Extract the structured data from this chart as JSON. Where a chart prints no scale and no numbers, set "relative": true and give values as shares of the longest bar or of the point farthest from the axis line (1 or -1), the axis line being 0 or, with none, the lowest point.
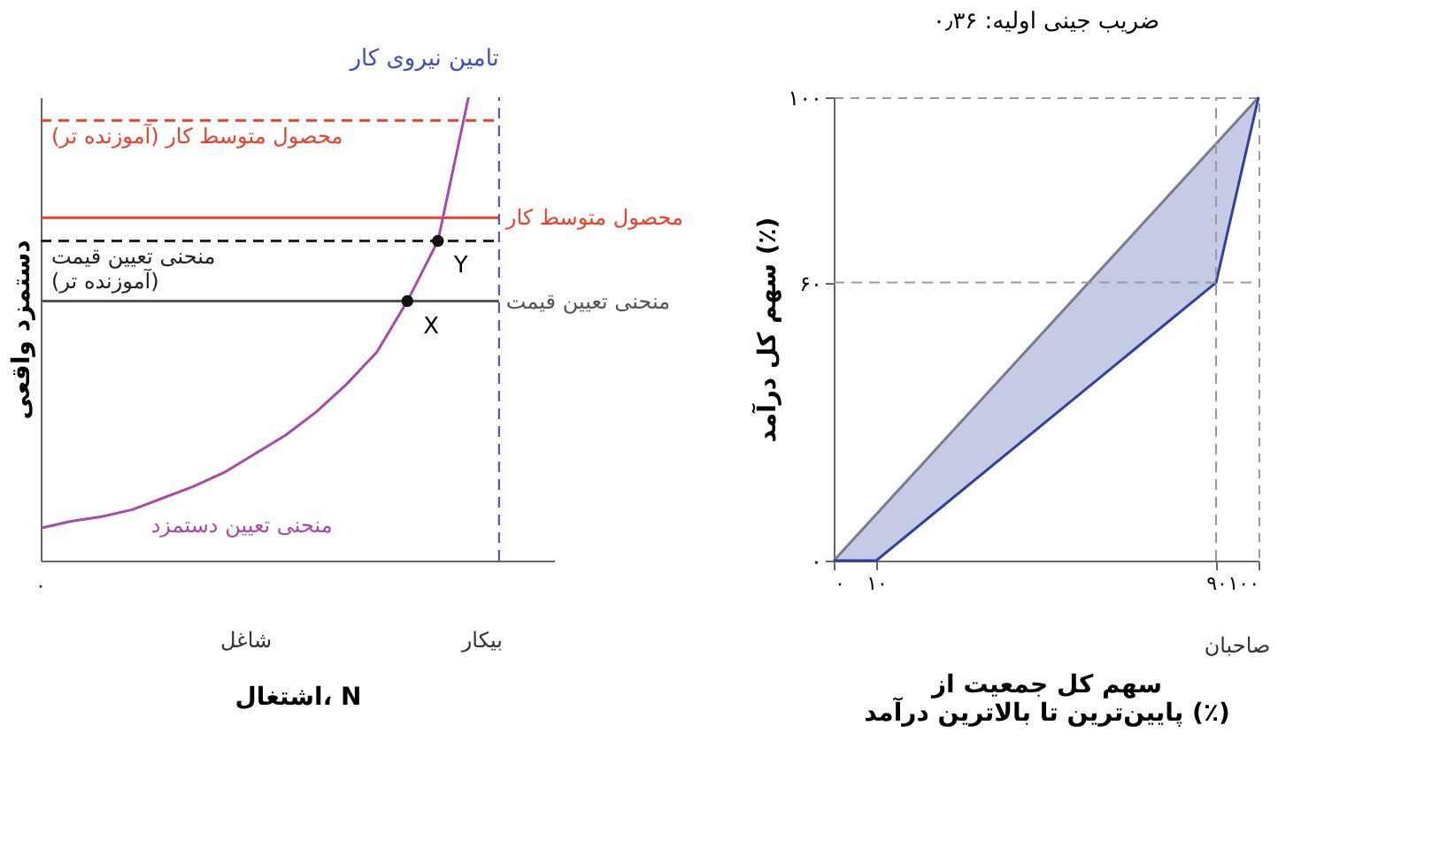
{
  "chart_data": [
    {
      "type": "line",
      "relative": true,
      "xlabel": "اشتغال، N",
      "ylabel": "دستمزد واقعی",
      "grid": false,
      "categories": [
        null,
        null,
        null,
        null,
        null,
        null,
        null,
        null,
        null,
        null,
        null,
        null,
        null,
        null,
        null,
        null
      ],
      "series": [
        {
          "name": "محصول متوسط کار (آموزنده تر)",
          "color": "#e8412c",
          "line_style": "dashed",
          "values": [
            0.95,
            0.95,
            0.95,
            0.95,
            0.95,
            0.95,
            0.95,
            0.95,
            0.95,
            0.95,
            0.95,
            0.95,
            0.95,
            0.95,
            0.95,
            0.95
          ]
        },
        {
          "name": "محصول متوسط کار",
          "color": "#e8412c",
          "line_style": "solid",
          "values": [
            0.74,
            0.74,
            0.74,
            0.74,
            0.74,
            0.74,
            0.74,
            0.74,
            0.74,
            0.74,
            0.74,
            0.74,
            0.74,
            0.74,
            0.74,
            0.74
          ]
        },
        {
          "name": "منحنی تعیین قیمت\n(آموزنده تر)",
          "color": "#222222",
          "line_style": "dashed",
          "values": [
            0.69,
            0.69,
            0.69,
            0.69,
            0.69,
            0.69,
            0.69,
            0.69,
            0.69,
            0.69,
            0.69,
            0.69,
            0.69,
            0.69,
            0.69,
            0.69
          ]
        },
        {
          "name": "منحنی تعیین قیمت",
          "color": "#555555",
          "line_style": "solid",
          "values": [
            0.56,
            0.56,
            0.56,
            0.56,
            0.56,
            0.56,
            0.56,
            0.56,
            0.56,
            0.56,
            0.56,
            0.56,
            0.56,
            0.56,
            0.56,
            0.56
          ]
        },
        {
          "name": "منحنی تعیین دستمزد",
          "color": "#a64ca6",
          "line_style": "solid",
          "values": [
            0.07,
            0.085,
            0.095,
            0.11,
            0.135,
            0.16,
            0.19,
            0.23,
            0.27,
            0.32,
            0.38,
            0.45,
            0.56,
            0.69,
            1.0,
            null
          ]
        },
        {
          "name": "X",
          "type": "line",
          "marker": "circle",
          "color": "#111111",
          "values": [
            null,
            null,
            null,
            null,
            null,
            null,
            null,
            null,
            null,
            null,
            null,
            null,
            0.56,
            null,
            null,
            null
          ]
        },
        {
          "name": "Y",
          "type": "line",
          "marker": "circle",
          "color": "#111111",
          "values": [
            null,
            null,
            null,
            null,
            null,
            null,
            null,
            null,
            null,
            null,
            null,
            null,
            null,
            0.69,
            null,
            null
          ]
        }
      ],
      "ref_lines": [
        {
          "axis": "x",
          "label": "تامین نیروی کار",
          "color": "#4050b0",
          "line_style": "dashed"
        }
      ],
      "annotations": [
        "۰",
        "شاغل",
        "بیکار"
      ]
    },
    {
      "type": "line",
      "title": "ضریب جینی اولیه: ۰٫۳۶",
      "xlabel": "سهم کل جمعیت از\nپایین‌ترین تا بالاترین درآمد (٪)",
      "ylabel": "سهم کل درآمد (٪)",
      "xlim": [
        0,
        100
      ],
      "ylim": [
        0,
        100
      ],
      "xticks": [
        {
          "value": 0,
          "label": "۰"
        },
        {
          "value": 10,
          "label": "۱۰"
        },
        {
          "value": 90,
          "label": "۹۰"
        },
        {
          "value": 100,
          "label": "۱۰۰"
        }
      ],
      "yticks": [
        {
          "value": 0,
          "label": "۰"
        },
        {
          "value": 60,
          "label": "۶۰"
        },
        {
          "value": 100,
          "label": "۱۰۰"
        }
      ],
      "grid": false,
      "series": [
        {
          "color": "#888888",
          "x": [
            0,
            100
          ],
          "values": [
            0,
            100
          ]
        },
        {
          "color": "#3040a0",
          "x": [
            0,
            10,
            90,
            100
          ],
          "values": [
            0,
            0,
            60,
            100
          ],
          "lower": [
            0,
            0,
            60,
            100
          ],
          "upper": [
            0,
            10,
            90,
            100
          ]
        }
      ],
      "ref_lines": [
        {
          "axis": "y",
          "value": 60,
          "color": "#999999",
          "line_style": "dashed"
        },
        {
          "axis": "x",
          "value": 90,
          "color": "#999999",
          "line_style": "dashed"
        }
      ],
      "annotations": [
        "صاحبان"
      ]
    }
  ]
}
